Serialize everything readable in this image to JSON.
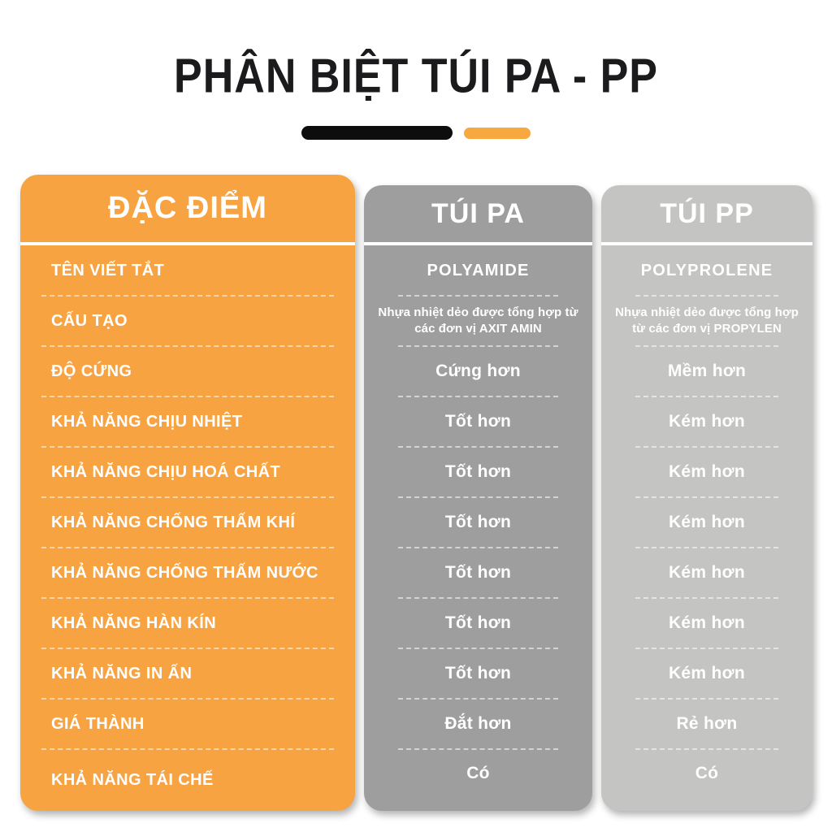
{
  "title": "PHÂN BIỆT TÚI PA - PP",
  "decor": {
    "bar_black_color": "#0d0d0d",
    "bar_orange_color": "#f7a83f"
  },
  "colors": {
    "features_column": "#f8a342",
    "pa_column": "#9e9e9e",
    "pp_column": "#c4c4c3",
    "title_text": "#1b1b1d",
    "cell_text": "#ffffff"
  },
  "chart_data": {
    "type": "table",
    "title": "PHÂN BIỆT TÚI PA - PP",
    "columns": [
      "ĐẶC ĐIỂM",
      "TÚI PA",
      "TÚI PP"
    ],
    "rows": [
      [
        "TÊN VIẾT TẮT",
        "POLYAMIDE",
        "POLYPROLENE"
      ],
      [
        "CẤU TẠO",
        "Nhựa nhiệt dẻo được tổng hợp từ các đơn vị AXIT AMIN",
        "Nhựa nhiệt dẻo được tổng hợp từ các đơn vị PROPYLEN"
      ],
      [
        "ĐỘ CỨNG",
        "Cứng hơn",
        "Mềm hơn"
      ],
      [
        "KHẢ NĂNG CHỊU NHIỆT",
        "Tốt hơn",
        "Kém hơn"
      ],
      [
        "KHẢ NĂNG CHỊU HOÁ CHẤT",
        "Tốt hơn",
        "Kém hơn"
      ],
      [
        "KHẢ NĂNG CHỐNG THẤM KHÍ",
        "Tốt hơn",
        "Kém hơn"
      ],
      [
        "KHẢ NĂNG CHỐNG THẤM NƯỚC",
        "Tốt hơn",
        "Kém hơn"
      ],
      [
        "KHẢ NĂNG HÀN KÍN",
        "Tốt hơn",
        "Kém hơn"
      ],
      [
        "KHẢ NĂNG IN ẤN",
        "Tốt hơn",
        "Kém hơn"
      ],
      [
        "GIÁ THÀNH",
        "Đắt hơn",
        "Rẻ hơn"
      ],
      [
        "KHẢ NĂNG TÁI CHẾ",
        "Có",
        "Có"
      ]
    ]
  },
  "table": {
    "headers": {
      "features": "ĐẶC ĐIỂM",
      "pa": "TÚI PA",
      "pp": "TÚI PP"
    },
    "rows": [
      {
        "label": "TÊN VIẾT TẮT",
        "pa": "POLYAMIDE",
        "pp": "POLYPROLENE"
      },
      {
        "label": "CẤU TẠO",
        "pa": "Nhựa nhiệt dẻo được tổng hợp từ các đơn vị AXIT AMIN",
        "pp": "Nhựa nhiệt dẻo được tổng hợp từ các đơn vị PROPYLEN"
      },
      {
        "label": "ĐỘ CỨNG",
        "pa": "Cứng hơn",
        "pp": "Mềm hơn"
      },
      {
        "label": "KHẢ NĂNG CHỊU NHIỆT",
        "pa": "Tốt hơn",
        "pp": "Kém hơn"
      },
      {
        "label": "KHẢ NĂNG CHỊU HOÁ CHẤT",
        "pa": "Tốt hơn",
        "pp": "Kém hơn"
      },
      {
        "label": "KHẢ NĂNG CHỐNG THẤM KHÍ",
        "pa": "Tốt hơn",
        "pp": "Kém hơn"
      },
      {
        "label": "KHẢ NĂNG CHỐNG THẤM NƯỚC",
        "pa": "Tốt hơn",
        "pp": "Kém hơn"
      },
      {
        "label": "KHẢ NĂNG HÀN KÍN",
        "pa": "Tốt hơn",
        "pp": "Kém hơn"
      },
      {
        "label": "KHẢ NĂNG IN ẤN",
        "pa": "Tốt hơn",
        "pp": "Kém hơn"
      },
      {
        "label": "GIÁ THÀNH",
        "pa": "Đắt hơn",
        "pp": "Rẻ hơn"
      },
      {
        "label": "KHẢ NĂNG TÁI CHẾ",
        "pa": "Có",
        "pp": "Có"
      }
    ]
  }
}
